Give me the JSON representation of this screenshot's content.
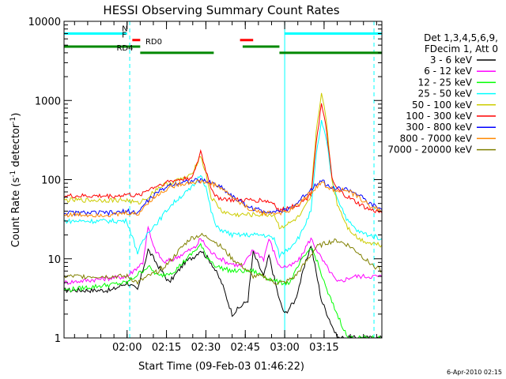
{
  "chart_data": {
    "type": "line",
    "title": "HESSI Observing Summary Count Rates",
    "xlabel": "Start Time (09-Feb-03 01:46:22)",
    "ylabel_main": "Count Rate (s",
    "ylabel_sup1": "-1",
    "ylabel_mid": " detector",
    "ylabel_sup2": "-1",
    "ylabel_end": ")",
    "footer": "6-Apr-2010 02:15",
    "x_range": [
      -10,
      111
    ],
    "y_log_range": [
      1,
      10000
    ],
    "x_ticks": [
      {
        "label": "02:00",
        "t": 14
      },
      {
        "label": "02:15",
        "t": 29
      },
      {
        "label": "02:30",
        "t": 44
      },
      {
        "label": "02:45",
        "t": 59
      },
      {
        "label": "03:00",
        "t": 74
      },
      {
        "label": "03:15",
        "t": 89
      }
    ],
    "y_ticks": [
      {
        "label": "1",
        "v": 1
      },
      {
        "label": "10",
        "v": 10
      },
      {
        "label": "100",
        "v": 100
      },
      {
        "label": "1000",
        "v": 1000
      },
      {
        "label": "10000",
        "v": 10000
      }
    ],
    "legend": {
      "header1": "Det 1,3,4,5,6,9,",
      "header2": "FDecim 1, Att 0"
    },
    "series": [
      {
        "name": "3 - 6 keV",
        "color": "#000000",
        "points": [
          [
            -10,
            4
          ],
          [
            8,
            4
          ],
          [
            14,
            5
          ],
          [
            18,
            4
          ],
          [
            22,
            13
          ],
          [
            26,
            8
          ],
          [
            30,
            5
          ],
          [
            36,
            9
          ],
          [
            40,
            11
          ],
          [
            42,
            13
          ],
          [
            46,
            9
          ],
          [
            50,
            5
          ],
          [
            54,
            2
          ],
          [
            60,
            3
          ],
          [
            62,
            12
          ],
          [
            66,
            6
          ],
          [
            68,
            11
          ],
          [
            72,
            3
          ],
          [
            74,
            2
          ],
          [
            78,
            3
          ],
          [
            82,
            9
          ],
          [
            84,
            15
          ],
          [
            88,
            3
          ],
          [
            94,
            1
          ],
          [
            111,
            1
          ]
        ]
      },
      {
        "name": "6 - 12 keV",
        "color": "#ff00ff",
        "points": [
          [
            -10,
            5
          ],
          [
            14,
            6
          ],
          [
            20,
            9
          ],
          [
            22,
            25
          ],
          [
            24,
            14
          ],
          [
            28,
            9
          ],
          [
            32,
            10
          ],
          [
            36,
            12
          ],
          [
            40,
            14
          ],
          [
            42,
            18
          ],
          [
            46,
            12
          ],
          [
            52,
            9
          ],
          [
            58,
            8
          ],
          [
            62,
            13
          ],
          [
            66,
            10
          ],
          [
            68,
            18
          ],
          [
            72,
            8
          ],
          [
            76,
            8
          ],
          [
            80,
            10
          ],
          [
            82,
            14
          ],
          [
            84,
            18
          ],
          [
            88,
            10
          ],
          [
            94,
            5
          ],
          [
            100,
            6
          ],
          [
            108,
            6
          ],
          [
            111,
            6
          ]
        ]
      },
      {
        "name": "12 - 25 keV",
        "color": "#00ff00",
        "points": [
          [
            -10,
            4
          ],
          [
            14,
            5
          ],
          [
            22,
            8
          ],
          [
            26,
            6
          ],
          [
            32,
            7
          ],
          [
            38,
            11
          ],
          [
            42,
            15
          ],
          [
            44,
            11
          ],
          [
            48,
            8
          ],
          [
            54,
            7
          ],
          [
            62,
            7
          ],
          [
            66,
            6
          ],
          [
            72,
            5
          ],
          [
            76,
            5
          ],
          [
            80,
            9
          ],
          [
            84,
            14
          ],
          [
            86,
            10
          ],
          [
            90,
            4
          ],
          [
            94,
            2
          ],
          [
            98,
            1
          ],
          [
            111,
            1
          ]
        ]
      },
      {
        "name": "25 - 50 keV",
        "color": "#00ffff",
        "points": [
          [
            -10,
            30
          ],
          [
            10,
            30
          ],
          [
            14,
            30
          ],
          [
            18,
            12
          ],
          [
            22,
            22
          ],
          [
            26,
            30
          ],
          [
            30,
            45
          ],
          [
            34,
            60
          ],
          [
            38,
            75
          ],
          [
            40,
            90
          ],
          [
            42,
            120
          ],
          [
            44,
            80
          ],
          [
            46,
            40
          ],
          [
            48,
            25
          ],
          [
            54,
            20
          ],
          [
            60,
            20
          ],
          [
            66,
            20
          ],
          [
            70,
            18
          ],
          [
            72,
            11
          ],
          [
            76,
            14
          ],
          [
            80,
            20
          ],
          [
            84,
            40
          ],
          [
            86,
            200
          ],
          [
            88,
            550
          ],
          [
            90,
            300
          ],
          [
            92,
            100
          ],
          [
            94,
            60
          ],
          [
            98,
            30
          ],
          [
            102,
            22
          ],
          [
            106,
            20
          ],
          [
            111,
            18
          ]
        ]
      },
      {
        "name": "50 - 100 keV",
        "color": "#cccc00",
        "points": [
          [
            -10,
            55
          ],
          [
            10,
            55
          ],
          [
            14,
            55
          ],
          [
            18,
            50
          ],
          [
            22,
            60
          ],
          [
            26,
            80
          ],
          [
            30,
            90
          ],
          [
            34,
            100
          ],
          [
            38,
            110
          ],
          [
            42,
            200
          ],
          [
            44,
            120
          ],
          [
            46,
            60
          ],
          [
            50,
            40
          ],
          [
            54,
            36
          ],
          [
            60,
            36
          ],
          [
            66,
            36
          ],
          [
            70,
            36
          ],
          [
            72,
            25
          ],
          [
            76,
            28
          ],
          [
            80,
            35
          ],
          [
            84,
            60
          ],
          [
            86,
            400
          ],
          [
            88,
            1300
          ],
          [
            90,
            500
          ],
          [
            92,
            100
          ],
          [
            94,
            50
          ],
          [
            98,
            25
          ],
          [
            102,
            18
          ],
          [
            106,
            16
          ],
          [
            111,
            15
          ]
        ]
      },
      {
        "name": "100 - 300 keV",
        "color": "#ff0000",
        "points": [
          [
            -10,
            62
          ],
          [
            10,
            62
          ],
          [
            14,
            65
          ],
          [
            18,
            62
          ],
          [
            22,
            75
          ],
          [
            26,
            85
          ],
          [
            30,
            95
          ],
          [
            34,
            100
          ],
          [
            38,
            105
          ],
          [
            40,
            130
          ],
          [
            42,
            230
          ],
          [
            44,
            130
          ],
          [
            46,
            80
          ],
          [
            48,
            60
          ],
          [
            54,
            55
          ],
          [
            60,
            55
          ],
          [
            66,
            55
          ],
          [
            70,
            50
          ],
          [
            72,
            40
          ],
          [
            76,
            45
          ],
          [
            80,
            50
          ],
          [
            84,
            65
          ],
          [
            86,
            300
          ],
          [
            88,
            900
          ],
          [
            90,
            400
          ],
          [
            92,
            100
          ],
          [
            94,
            75
          ],
          [
            98,
            60
          ],
          [
            102,
            50
          ],
          [
            106,
            42
          ],
          [
            111,
            38
          ]
        ]
      },
      {
        "name": "300 - 800 keV",
        "color": "#0000ff",
        "points": [
          [
            -10,
            38
          ],
          [
            10,
            38
          ],
          [
            14,
            40
          ],
          [
            18,
            38
          ],
          [
            22,
            55
          ],
          [
            26,
            70
          ],
          [
            30,
            85
          ],
          [
            34,
            92
          ],
          [
            38,
            96
          ],
          [
            42,
            98
          ],
          [
            46,
            92
          ],
          [
            50,
            80
          ],
          [
            54,
            62
          ],
          [
            58,
            50
          ],
          [
            62,
            43
          ],
          [
            66,
            40
          ],
          [
            70,
            40
          ],
          [
            74,
            40
          ],
          [
            78,
            48
          ],
          [
            82,
            65
          ],
          [
            86,
            88
          ],
          [
            88,
            100
          ],
          [
            90,
            85
          ],
          [
            92,
            78
          ],
          [
            98,
            75
          ],
          [
            102,
            65
          ],
          [
            106,
            50
          ],
          [
            111,
            42
          ]
        ]
      },
      {
        "name": "800 - 7000 keV",
        "color": "#ff8800",
        "points": [
          [
            -10,
            36
          ],
          [
            10,
            36
          ],
          [
            14,
            38
          ],
          [
            18,
            36
          ],
          [
            22,
            52
          ],
          [
            26,
            65
          ],
          [
            30,
            80
          ],
          [
            34,
            88
          ],
          [
            38,
            92
          ],
          [
            42,
            95
          ],
          [
            46,
            90
          ],
          [
            50,
            78
          ],
          [
            54,
            60
          ],
          [
            58,
            48
          ],
          [
            62,
            41
          ],
          [
            66,
            38
          ],
          [
            70,
            38
          ],
          [
            74,
            38
          ],
          [
            78,
            45
          ],
          [
            82,
            60
          ],
          [
            86,
            80
          ],
          [
            88,
            92
          ],
          [
            90,
            82
          ],
          [
            92,
            76
          ],
          [
            98,
            72
          ],
          [
            102,
            60
          ],
          [
            106,
            48
          ],
          [
            111,
            40
          ]
        ]
      },
      {
        "name": "7000 - 20000 keV",
        "color": "#808000",
        "points": [
          [
            -10,
            6
          ],
          [
            10,
            6
          ],
          [
            14,
            6
          ],
          [
            18,
            5
          ],
          [
            22,
            6
          ],
          [
            26,
            7
          ],
          [
            30,
            9
          ],
          [
            34,
            13
          ],
          [
            38,
            18
          ],
          [
            42,
            20
          ],
          [
            46,
            18
          ],
          [
            50,
            14
          ],
          [
            54,
            10
          ],
          [
            58,
            8
          ],
          [
            62,
            6
          ],
          [
            66,
            6
          ],
          [
            70,
            5
          ],
          [
            74,
            5
          ],
          [
            78,
            6
          ],
          [
            82,
            9
          ],
          [
            86,
            14
          ],
          [
            90,
            16
          ],
          [
            94,
            17
          ],
          [
            98,
            15
          ],
          [
            102,
            12
          ],
          [
            106,
            9
          ],
          [
            111,
            7
          ]
        ]
      }
    ],
    "flags": [
      {
        "label": "N",
        "color": "#00ffff",
        "y": 7000,
        "segments": [
          [
            -10,
            14
          ],
          [
            74,
            111
          ]
        ],
        "label_t": 12
      },
      {
        "label": "F",
        "color": "#ff0000",
        "y": 5800,
        "segments": [
          [
            16,
            19
          ],
          [
            57,
            62
          ]
        ],
        "label_t": 12
      },
      {
        "label": "RD0",
        "color": "#008800",
        "y": 4800,
        "segments": [
          [
            -10,
            19
          ],
          [
            58,
            72
          ]
        ],
        "label_t": 21
      },
      {
        "label": "RD4",
        "color": "#008800",
        "y": 4000,
        "segments": [
          [
            19,
            47
          ],
          [
            72,
            111
          ]
        ],
        "label_t": 10
      }
    ],
    "vlines": [
      {
        "t": -10,
        "style": "solid",
        "color": "#00ffff"
      },
      {
        "t": 15,
        "style": "dashed",
        "color": "#00ffff"
      },
      {
        "t": 74,
        "style": "solid",
        "color": "#00ffff"
      },
      {
        "t": 108,
        "style": "dashed",
        "color": "#00ffff"
      }
    ]
  }
}
